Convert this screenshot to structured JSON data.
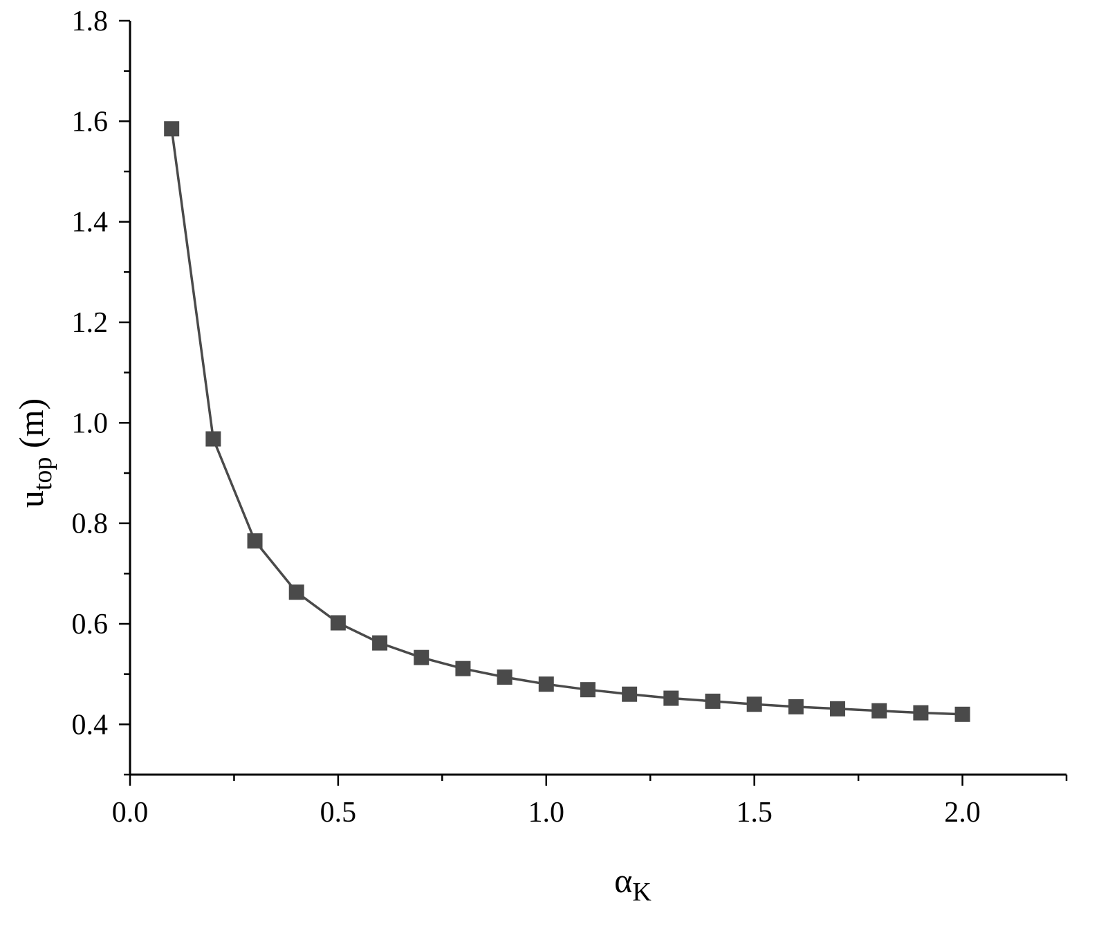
{
  "chart_data": {
    "type": "line",
    "title": "",
    "xlabel": {
      "main": "α",
      "sub": "K"
    },
    "ylabel": {
      "main": "u",
      "sub": "top",
      "unit": " (m)"
    },
    "xlim": [
      0.0,
      2.25
    ],
    "ylim": [
      0.3,
      1.8
    ],
    "xticks": [
      "0.0",
      "0.5",
      "1.0",
      "1.5",
      "2.0"
    ],
    "yticks": [
      "0.4",
      "0.6",
      "0.8",
      "1.0",
      "1.2",
      "1.4",
      "1.6",
      "1.8"
    ],
    "grid": false,
    "legend": "none",
    "color": "#4a4a4a",
    "marker": "square",
    "series": [
      {
        "x": [
          0.1,
          0.2,
          0.3,
          0.4,
          0.5,
          0.6,
          0.7,
          0.8,
          0.9,
          1.0,
          1.1,
          1.2,
          1.3,
          1.4,
          1.5,
          1.6,
          1.7,
          1.8,
          1.9,
          2.0
        ],
        "values": [
          1.585,
          0.968,
          0.765,
          0.663,
          0.602,
          0.562,
          0.533,
          0.511,
          0.494,
          0.48,
          0.469,
          0.46,
          0.452,
          0.446,
          0.44,
          0.435,
          0.431,
          0.427,
          0.423,
          0.42
        ]
      }
    ]
  }
}
